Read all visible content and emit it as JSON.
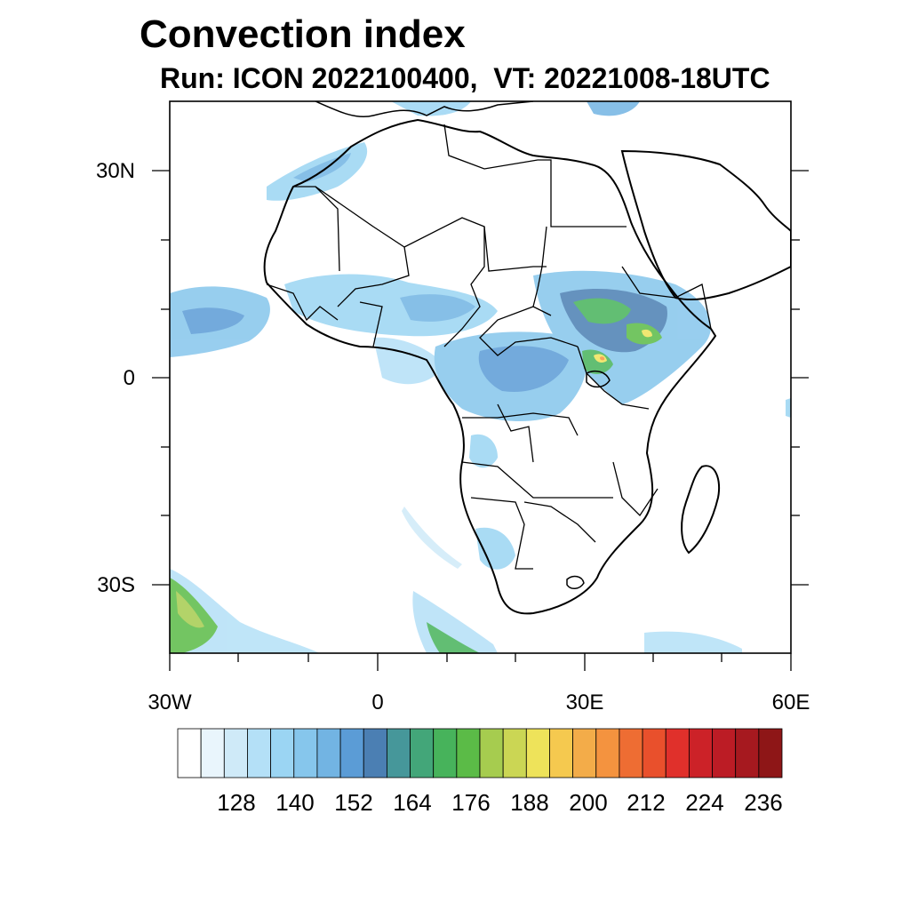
{
  "title": "Convection index",
  "subtitle": "Run: ICON 2022100400,  VT: 20221008-18UTC",
  "axes": {
    "lat_labels": [
      "30N",
      "0",
      "30S"
    ],
    "lon_labels": [
      "30W",
      "0",
      "30E",
      "60E"
    ]
  },
  "colorbar": {
    "labels": [
      "128",
      "140",
      "152",
      "164",
      "176",
      "188",
      "200",
      "212",
      "224",
      "236"
    ],
    "colors": [
      "#ffffff",
      "#e9f5fc",
      "#cfeaf8",
      "#b4e0f7",
      "#9bd5f3",
      "#86c6ec",
      "#72b4e3",
      "#5b9cd6",
      "#4b7fb3",
      "#46979a",
      "#43a679",
      "#47b35b",
      "#5bbb47",
      "#a6cc4f",
      "#cbd654",
      "#eee35a",
      "#f5c94f",
      "#f3ac49",
      "#f4933f",
      "#ee6d33",
      "#e9502c",
      "#e0302b",
      "#cc2228",
      "#bc1c25",
      "#a6191f",
      "#8e1617"
    ]
  },
  "map": {
    "region": "Africa",
    "field_colors": {
      "light": "#b4e0f7",
      "mid": "#72b4e3",
      "dark": "#4b7fb3",
      "green": "#47b35b",
      "yellow": "#eee35a",
      "orange": "#f4933f"
    }
  }
}
